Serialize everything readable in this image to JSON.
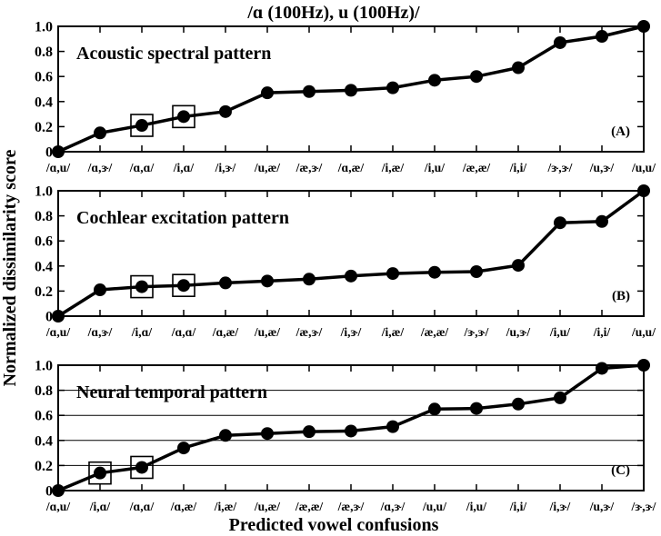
{
  "title": "/ɑ (100Hz), u (100Hz)/",
  "xlabel": "Predicted vowel confusions",
  "ylabel": "Normalized dissimilarity score",
  "chart_data": [
    {
      "type": "line",
      "title": "Acoustic spectral pattern",
      "panel_label": "(A)",
      "categories": [
        "/ɑ,u/",
        "/ɑ,ɝ/",
        "/ɑ,ɑ/",
        "/i,ɑ/",
        "/i,ɝ/",
        "/u,æ/",
        "/æ,ɝ/",
        "/ɑ,æ/",
        "/i,æ/",
        "/i,u/",
        "/æ,æ/",
        "/i,i/",
        "/ɝ,ɝ/",
        "/u,ɝ/",
        "/u,u/"
      ],
      "values": [
        0.0,
        0.15,
        0.21,
        0.28,
        0.32,
        0.47,
        0.48,
        0.49,
        0.51,
        0.57,
        0.6,
        0.67,
        0.87,
        0.92,
        1.0
      ],
      "highlighted": [
        "/ɑ,ɑ/",
        "/i,ɑ/"
      ],
      "ylim": [
        0,
        1.0
      ],
      "yticks": [
        "0",
        "0.2",
        "0.4",
        "0.6",
        "0.8",
        "1.0"
      ],
      "grid": false,
      "legend": "none"
    },
    {
      "type": "line",
      "title": "Cochlear excitation pattern",
      "panel_label": "(B)",
      "categories": [
        "/ɑ,u/",
        "/ɑ,ɝ/",
        "/i,ɑ/",
        "/ɑ,ɑ/",
        "/ɑ,æ/",
        "/u,æ/",
        "/æ,ɝ/",
        "/i,ɝ/",
        "/i,æ/",
        "/æ,æ/",
        "/ɝ,ɝ/",
        "/u,ɝ/",
        "/i,u/",
        "/i,i/",
        "/u,u/"
      ],
      "values": [
        0.0,
        0.21,
        0.235,
        0.245,
        0.265,
        0.28,
        0.295,
        0.32,
        0.34,
        0.35,
        0.355,
        0.405,
        0.745,
        0.755,
        1.0
      ],
      "highlighted": [
        "/i,ɑ/",
        "/ɑ,ɑ/"
      ],
      "ylim": [
        0,
        1.0
      ],
      "yticks": [
        "0",
        "0.2",
        "0.4",
        "0.6",
        "0.8",
        "1.0"
      ],
      "grid": false,
      "legend": "none"
    },
    {
      "type": "line",
      "title": "Neural temporal pattern",
      "panel_label": "(C)",
      "categories": [
        "/ɑ,u/",
        "/i,ɑ/",
        "/ɑ,ɑ/",
        "/ɑ,æ/",
        "/i,æ/",
        "/u,æ/",
        "/æ,æ/",
        "/æ,ɝ/",
        "/ɑ,ɝ/",
        "/u,u/",
        "/i,u/",
        "/i,i/",
        "/i,ɝ/",
        "/u,ɝ/",
        "/ɝ,ɝ/"
      ],
      "values": [
        0.0,
        0.14,
        0.185,
        0.34,
        0.44,
        0.455,
        0.47,
        0.475,
        0.51,
        0.65,
        0.655,
        0.69,
        0.74,
        0.975,
        1.0
      ],
      "highlighted": [
        "/i,ɑ/",
        "/ɑ,ɑ/"
      ],
      "ylim": [
        0,
        1.0
      ],
      "yticks": [
        "0",
        "0.2",
        "0.4",
        "0.6",
        "0.8",
        "1.0"
      ],
      "grid": true,
      "legend": "none"
    }
  ]
}
